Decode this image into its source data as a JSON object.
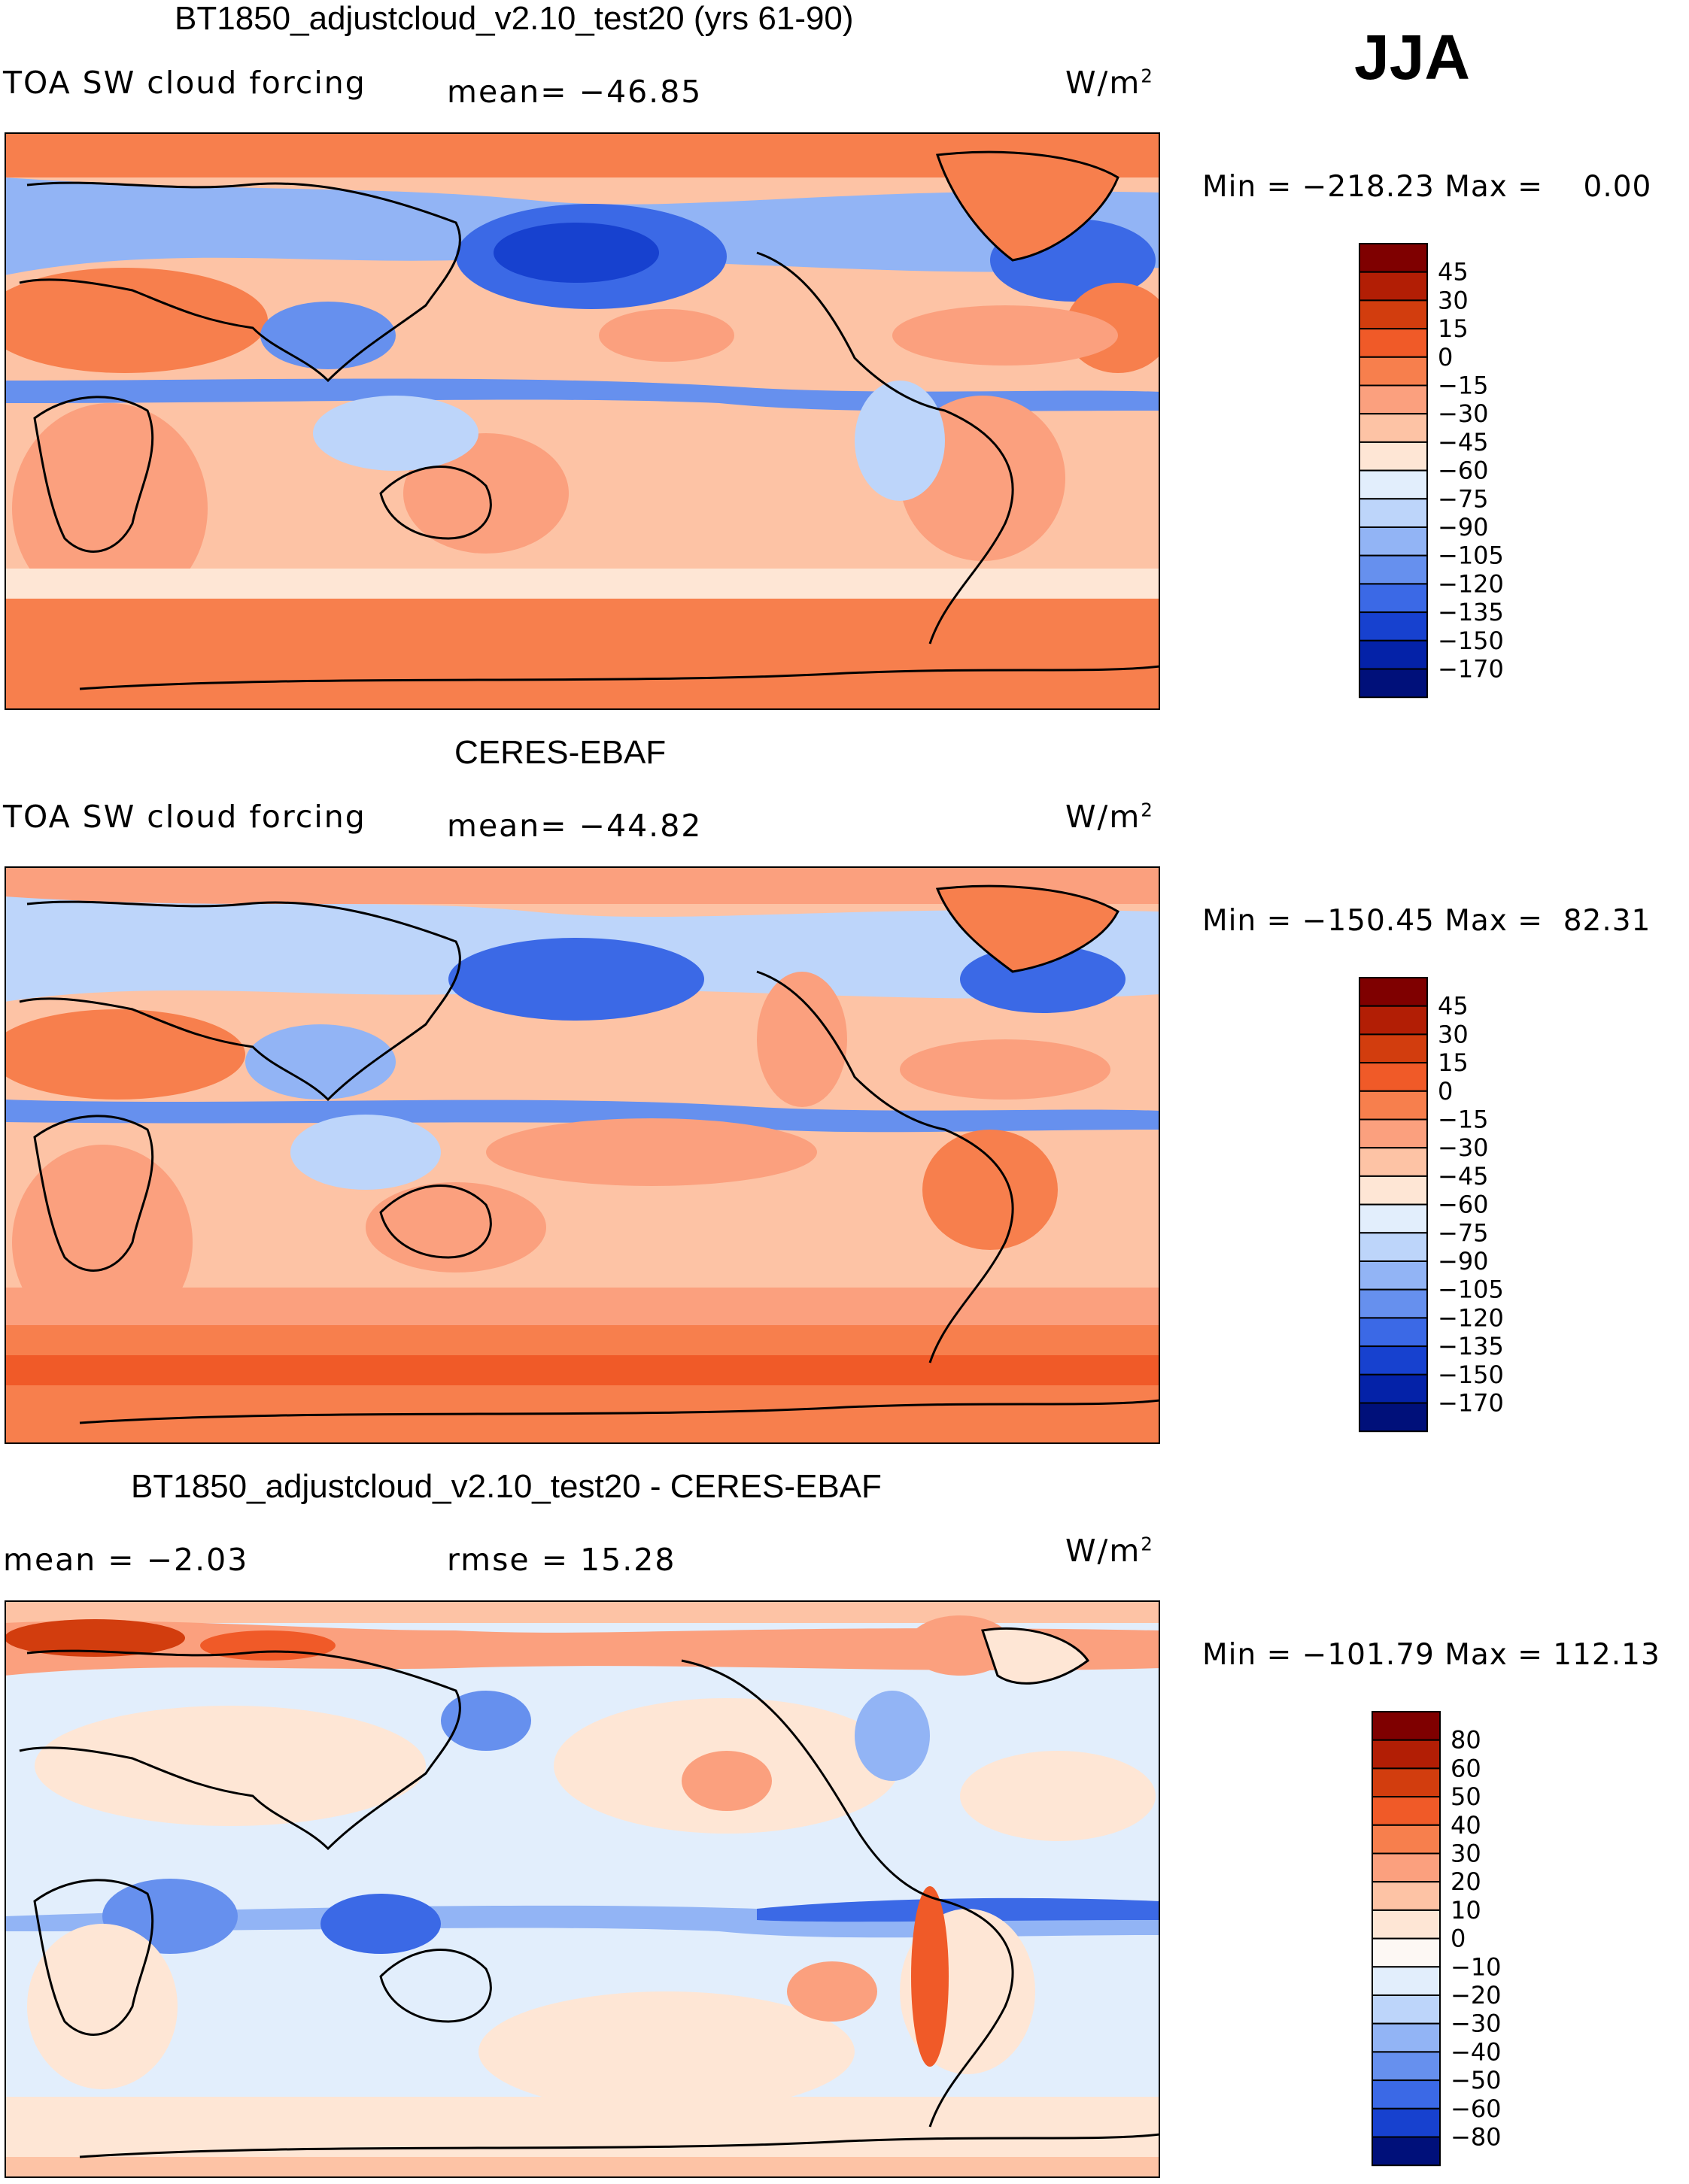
{
  "season": "JJA",
  "panels": [
    {
      "title": "BT1850_adjustcloud_v2.10_test20 (yrs 61-90)",
      "left_label": "TOA SW cloud forcing",
      "center_label": "mean= −46.85",
      "units": "W/m",
      "units_exp": "2",
      "minmax": "Min = −218.23 Max =    0.00",
      "colorbar": {
        "labels": [
          "45",
          "30",
          "15",
          "0",
          "−15",
          "−30",
          "−45",
          "−60",
          "−75",
          "−90",
          "−105",
          "−120",
          "−135",
          "−150",
          "−170"
        ],
        "colors": [
          "#7f0000",
          "#b21e05",
          "#d23d0e",
          "#f05a28",
          "#f77f4d",
          "#fba07e",
          "#fdc3a5",
          "#fee6d5",
          "#e2eefc",
          "#bdd5fa",
          "#92b4f5",
          "#6690ee",
          "#3b69e6",
          "#1741cf",
          "#0422a8",
          "#00107a"
        ]
      },
      "map": {
        "description_name": "model-field"
      }
    },
    {
      "title": "CERES-EBAF",
      "left_label": "TOA SW cloud forcing",
      "center_label": "mean= −44.82",
      "units": "W/m",
      "units_exp": "2",
      "minmax": "Min = −150.45 Max =  82.31",
      "colorbar": {
        "labels": [
          "45",
          "30",
          "15",
          "0",
          "−15",
          "−30",
          "−45",
          "−60",
          "−75",
          "−90",
          "−105",
          "−120",
          "−135",
          "−150",
          "−170"
        ],
        "colors": [
          "#7f0000",
          "#b21e05",
          "#d23d0e",
          "#f05a28",
          "#f77f4d",
          "#fba07e",
          "#fdc3a5",
          "#fee6d5",
          "#e2eefc",
          "#bdd5fa",
          "#92b4f5",
          "#6690ee",
          "#3b69e6",
          "#1741cf",
          "#0422a8",
          "#00107a"
        ]
      }
    },
    {
      "title": "BT1850_adjustcloud_v2.10_test20 - CERES-EBAF",
      "left_label": "mean =   −2.03",
      "center_label": "rmse =   15.28",
      "units": "W/m",
      "units_exp": "2",
      "minmax": "Min = −101.79 Max = 112.13",
      "colorbar": {
        "labels": [
          "80",
          "60",
          "50",
          "40",
          "30",
          "20",
          "10",
          "0",
          "−10",
          "−20",
          "−30",
          "−40",
          "−50",
          "−60",
          "−80"
        ],
        "colors": [
          "#7f0000",
          "#b21e05",
          "#d23d0e",
          "#f05a28",
          "#f77f4d",
          "#fba07e",
          "#fdc3a5",
          "#fee6d5",
          "#fdf8f4",
          "#e2eefc",
          "#bdd5fa",
          "#92b4f5",
          "#6690ee",
          "#3b69e6",
          "#1741cf",
          "#00107a"
        ]
      }
    }
  ]
}
